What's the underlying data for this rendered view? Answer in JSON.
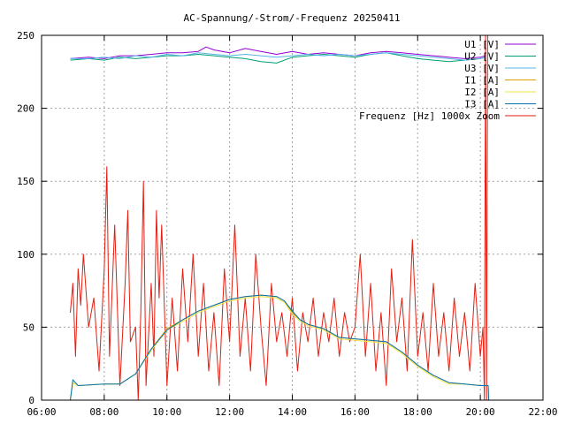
{
  "chart_data": {
    "type": "line",
    "title": "AC-Spannung/-Strom/-Frequenz 20250411",
    "xlabel": "",
    "ylabel": "",
    "xlim": [
      "06:00",
      "22:00"
    ],
    "ylim": [
      0,
      250
    ],
    "x_ticks": [
      "06:00",
      "08:00",
      "10:00",
      "12:00",
      "14:00",
      "16:00",
      "18:00",
      "20:00",
      "22:00"
    ],
    "y_ticks": [
      0,
      50,
      100,
      150,
      200,
      250
    ],
    "grid": true,
    "legend_position": "top-right",
    "series": [
      {
        "name": "U1 [V]",
        "color": "#9400d3",
        "x": [
          "06:55",
          "07:30",
          "08:00",
          "08:30",
          "09:00",
          "09:30",
          "10:00",
          "10:30",
          "11:00",
          "11:15",
          "11:30",
          "12:00",
          "12:30",
          "13:00",
          "13:30",
          "14:00",
          "14:30",
          "15:00",
          "15:30",
          "16:00",
          "16:30",
          "17:00",
          "17:30",
          "18:00",
          "18:30",
          "19:00",
          "19:30",
          "20:00",
          "20:10"
        ],
        "y": [
          234,
          235,
          234,
          236,
          236,
          237,
          238,
          238,
          239,
          242,
          240,
          238,
          241,
          239,
          237,
          239,
          237,
          238,
          237,
          236,
          238,
          239,
          238,
          237,
          236,
          235,
          234,
          235,
          236
        ]
      },
      {
        "name": "U2 [V]",
        "color": "#009e73",
        "x": [
          "06:55",
          "07:30",
          "08:00",
          "08:30",
          "09:00",
          "09:30",
          "10:00",
          "10:30",
          "11:00",
          "11:30",
          "12:00",
          "12:30",
          "13:00",
          "13:30",
          "14:00",
          "14:30",
          "15:00",
          "15:30",
          "16:00",
          "16:30",
          "17:00",
          "17:30",
          "18:00",
          "18:30",
          "19:00",
          "19:30",
          "20:00",
          "20:10"
        ],
        "y": [
          233,
          234,
          233,
          235,
          234,
          235,
          236,
          236,
          237,
          236,
          235,
          234,
          232,
          231,
          235,
          236,
          237,
          236,
          235,
          237,
          238,
          236,
          234,
          233,
          232,
          233,
          234,
          235
        ]
      },
      {
        "name": "U3 [V]",
        "color": "#56b4e9",
        "x": [
          "06:55",
          "07:30",
          "08:00",
          "08:30",
          "09:00",
          "09:30",
          "10:00",
          "10:30",
          "11:00",
          "11:30",
          "12:00",
          "12:30",
          "13:00",
          "13:30",
          "14:00",
          "14:30",
          "15:00",
          "15:30",
          "16:00",
          "16:30",
          "17:00",
          "17:30",
          "18:00",
          "18:30",
          "19:00",
          "19:30",
          "20:00",
          "20:10"
        ],
        "y": [
          234,
          234,
          235,
          234,
          236,
          235,
          237,
          236,
          238,
          237,
          236,
          237,
          236,
          235,
          236,
          237,
          236,
          237,
          236,
          237,
          238,
          237,
          236,
          235,
          234,
          233,
          234,
          235
        ]
      },
      {
        "name": "I1 [A]",
        "color": "#e69f00",
        "x": [
          "06:55",
          "07:00",
          "07:10",
          "08:00",
          "08:30",
          "09:00",
          "09:30",
          "10:00",
          "10:30",
          "11:00",
          "11:30",
          "12:00",
          "12:30",
          "13:00",
          "13:30",
          "13:45",
          "14:00",
          "14:15",
          "14:30",
          "15:00",
          "15:30",
          "16:00",
          "16:30",
          "17:00",
          "17:30",
          "18:00",
          "18:30",
          "19:00",
          "19:30",
          "20:00",
          "20:15",
          "20:16"
        ],
        "y": [
          0,
          12,
          10,
          11,
          11,
          18,
          35,
          49,
          55,
          61,
          65,
          69,
          71,
          72,
          71,
          68,
          60,
          55,
          52,
          49,
          43,
          42,
          41,
          40,
          33,
          24,
          17,
          12,
          11,
          10,
          10,
          0
        ]
      },
      {
        "name": "I2 [A]",
        "color": "#f0e442",
        "x": [
          "06:55",
          "07:00",
          "07:10",
          "08:00",
          "08:30",
          "09:00",
          "09:30",
          "10:00",
          "10:30",
          "11:00",
          "11:30",
          "12:00",
          "12:30",
          "13:00",
          "13:30",
          "13:45",
          "14:00",
          "14:15",
          "14:30",
          "15:00",
          "15:30",
          "16:00",
          "16:30",
          "17:00",
          "17:30",
          "18:00",
          "18:30",
          "19:00",
          "19:30",
          "20:00",
          "20:15",
          "20:16"
        ],
        "y": [
          0,
          12,
          10,
          11,
          11,
          18,
          34,
          48,
          54,
          60,
          64,
          68,
          70,
          71,
          70,
          67,
          59,
          54,
          51,
          48,
          42,
          41,
          40,
          39,
          32,
          23,
          16,
          11,
          11,
          10,
          10,
          0
        ]
      },
      {
        "name": "I3 [A]",
        "color": "#0072b2",
        "x": [
          "06:55",
          "07:00",
          "07:10",
          "08:00",
          "08:30",
          "09:00",
          "09:30",
          "10:00",
          "10:30",
          "11:00",
          "11:30",
          "12:00",
          "12:30",
          "13:00",
          "13:30",
          "13:45",
          "14:00",
          "14:15",
          "14:30",
          "15:00",
          "15:30",
          "16:00",
          "16:30",
          "17:00",
          "17:30",
          "18:00",
          "18:30",
          "19:00",
          "19:30",
          "20:00",
          "20:15",
          "20:16"
        ],
        "y": [
          0,
          14,
          10,
          11,
          11,
          18,
          35,
          48,
          55,
          61,
          65,
          69,
          71,
          72,
          71,
          68,
          61,
          55,
          52,
          49,
          43,
          42,
          41,
          40,
          33,
          24,
          17,
          12,
          11,
          10,
          10,
          0
        ]
      },
      {
        "name": "Frequenz [Hz] 1000x Zoom",
        "color": "#e51e10",
        "x": [
          "06:55",
          "07:00",
          "07:05",
          "07:10",
          "07:15",
          "07:20",
          "07:30",
          "07:40",
          "07:50",
          "08:00",
          "08:05",
          "08:10",
          "08:20",
          "08:30",
          "08:40",
          "08:45",
          "08:50",
          "09:00",
          "09:05",
          "09:10",
          "09:15",
          "09:20",
          "09:30",
          "09:35",
          "09:40",
          "09:45",
          "09:50",
          "10:00",
          "10:10",
          "10:20",
          "10:30",
          "10:40",
          "10:50",
          "11:00",
          "11:10",
          "11:20",
          "11:30",
          "11:40",
          "11:50",
          "12:00",
          "12:10",
          "12:20",
          "12:30",
          "12:40",
          "12:50",
          "13:00",
          "13:10",
          "13:20",
          "13:30",
          "13:40",
          "13:50",
          "14:00",
          "14:10",
          "14:20",
          "14:30",
          "14:40",
          "14:50",
          "15:00",
          "15:10",
          "15:20",
          "15:30",
          "15:40",
          "15:50",
          "16:00",
          "16:10",
          "16:20",
          "16:30",
          "16:40",
          "16:50",
          "17:00",
          "17:10",
          "17:20",
          "17:30",
          "17:40",
          "17:50",
          "18:00",
          "18:10",
          "18:20",
          "18:30",
          "18:40",
          "18:50",
          "19:00",
          "19:10",
          "19:20",
          "19:30",
          "19:40",
          "19:50",
          "20:00",
          "20:05",
          "20:08",
          "20:10",
          "20:12",
          "20:14"
        ],
        "y": [
          60,
          80,
          30,
          90,
          65,
          100,
          50,
          70,
          20,
          90,
          160,
          30,
          120,
          10,
          80,
          130,
          40,
          50,
          0,
          60,
          150,
          10,
          80,
          30,
          130,
          70,
          120,
          10,
          70,
          20,
          90,
          40,
          100,
          30,
          80,
          20,
          60,
          10,
          90,
          40,
          120,
          30,
          70,
          20,
          100,
          50,
          10,
          80,
          40,
          60,
          30,
          70,
          20,
          60,
          40,
          70,
          30,
          60,
          40,
          70,
          30,
          60,
          40,
          50,
          100,
          30,
          80,
          20,
          60,
          10,
          90,
          40,
          70,
          20,
          110,
          30,
          60,
          20,
          80,
          30,
          60,
          20,
          70,
          30,
          60,
          20,
          80,
          30,
          50,
          0,
          250,
          0,
          250
        ]
      }
    ]
  }
}
